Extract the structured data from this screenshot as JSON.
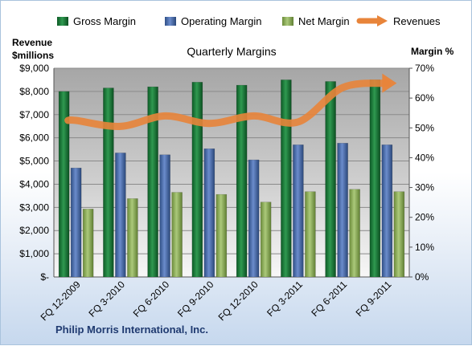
{
  "chart_data": {
    "type": "bar",
    "title": "Quarterly Margins",
    "footer": "Philip Morris International, Inc.",
    "categories": [
      "FQ 12-2009",
      "FQ 3-2010",
      "FQ 6-2010",
      "FQ 9-2010",
      "FQ 12-2010",
      "FQ 3-2011",
      "FQ 6-2011",
      "FQ 9-2011"
    ],
    "series": [
      {
        "name": "Gross Margin",
        "type": "bar",
        "axis": "left",
        "color": "#1e7b3c",
        "values": [
          8000,
          8150,
          8200,
          8400,
          8270,
          8500,
          8430,
          8500
        ]
      },
      {
        "name": "Operating Margin",
        "type": "bar",
        "axis": "left",
        "color": "#4a6eb0",
        "values": [
          4700,
          5350,
          5270,
          5530,
          5050,
          5700,
          5770,
          5700
        ]
      },
      {
        "name": "Net Margin",
        "type": "bar",
        "axis": "left",
        "color": "#8db254",
        "values": [
          2930,
          3380,
          3650,
          3560,
          3230,
          3680,
          3780,
          3680
        ]
      },
      {
        "name": "Revenues",
        "type": "line",
        "axis": "right",
        "color": "#e8843a",
        "values": [
          52.5,
          50.5,
          54,
          51.5,
          54,
          52,
          63.5,
          65
        ]
      }
    ],
    "y_left": {
      "label": "Revenue\n$millions",
      "min": 0,
      "max": 9000,
      "step": 1000,
      "tick_labels": [
        "$-",
        "$1,000",
        "$2,000",
        "$3,000",
        "$4,000",
        "$5,000",
        "$6,000",
        "$7,000",
        "$8,000",
        "$9,000"
      ]
    },
    "y_right": {
      "label": "Margin %",
      "min": 0,
      "max": 70,
      "step": 10,
      "tick_labels": [
        "0%",
        "10%",
        "20%",
        "30%",
        "40%",
        "50%",
        "60%",
        "70%"
      ]
    },
    "legend": {
      "placement": "top"
    },
    "grid": true
  }
}
